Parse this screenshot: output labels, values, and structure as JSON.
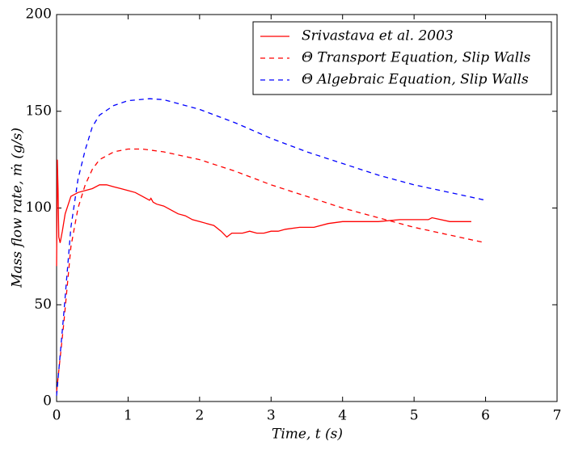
{
  "chart_data": {
    "type": "line",
    "xlabel": "Time, t (s)",
    "ylabel": "Mass flow rate, ṁ (g/s)",
    "xlim": [
      0,
      7
    ],
    "xticks": [
      0,
      1,
      2,
      3,
      4,
      5,
      6,
      7
    ],
    "ylim": [
      0,
      200
    ],
    "yticks": [
      0,
      50,
      100,
      150,
      200
    ],
    "legend": "upper-right",
    "series": [
      {
        "name": "Srivastava et al. 2003",
        "color": "#ff0000",
        "linestyle": "solid",
        "x": [
          0,
          0.01,
          0.02,
          0.03,
          0.05,
          0.08,
          0.12,
          0.2,
          0.3,
          0.4,
          0.5,
          0.6,
          0.7,
          0.8,
          0.9,
          1.0,
          1.1,
          1.2,
          1.3,
          1.32,
          1.35,
          1.4,
          1.5,
          1.6,
          1.7,
          1.8,
          1.9,
          2.0,
          2.1,
          2.2,
          2.3,
          2.38,
          2.45,
          2.6,
          2.7,
          2.8,
          2.9,
          3.0,
          3.1,
          3.2,
          3.4,
          3.6,
          3.8,
          4.0,
          4.2,
          4.5,
          4.8,
          5.0,
          5.2,
          5.25,
          5.5,
          5.7,
          5.8
        ],
        "values": [
          70,
          125,
          110,
          85,
          82,
          88,
          97,
          106,
          108,
          109,
          110,
          112,
          112,
          111,
          110,
          109,
          108,
          106,
          104,
          105,
          103,
          102,
          101,
          99,
          97,
          96,
          94,
          93,
          92,
          91,
          88,
          85,
          87,
          87,
          88,
          87,
          87,
          88,
          88,
          89,
          90,
          90,
          92,
          93,
          93,
          93,
          94,
          94,
          94,
          95,
          93,
          93,
          93
        ]
      },
      {
        "name": "Θ Transport Equation, Slip Walls",
        "color": "#ff0000",
        "linestyle": "dashed",
        "x": [
          0,
          0.1,
          0.2,
          0.3,
          0.4,
          0.5,
          0.6,
          0.8,
          1.0,
          1.2,
          1.5,
          2,
          2.5,
          3,
          3.5,
          4,
          4.5,
          5,
          5.5,
          6
        ],
        "values": [
          5,
          40,
          80,
          100,
          112,
          120,
          125,
          129,
          130.5,
          130.5,
          129,
          125,
          119,
          112,
          106,
          100,
          95,
          90,
          86,
          82
        ]
      },
      {
        "name": "Θ Algebraic Equation, Slip Walls",
        "color": "#0000ff",
        "linestyle": "dashed",
        "x": [
          0,
          0.1,
          0.2,
          0.3,
          0.4,
          0.5,
          0.6,
          0.8,
          1.0,
          1.3,
          1.5,
          2,
          2.5,
          3,
          3.5,
          4,
          4.5,
          5,
          5.5,
          6
        ],
        "values": [
          3,
          45,
          90,
          115,
          130,
          142,
          148,
          153,
          155.5,
          156.5,
          156,
          151,
          144,
          136,
          129,
          123,
          117,
          112,
          108,
          104
        ]
      }
    ]
  }
}
